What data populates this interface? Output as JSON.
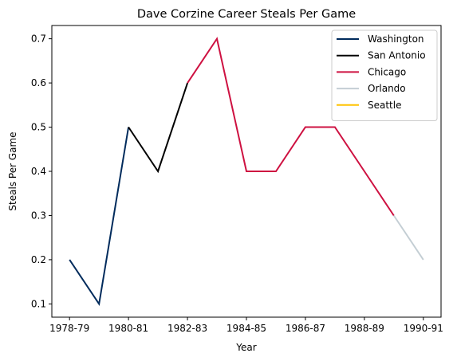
{
  "chart_data": {
    "type": "line",
    "title": "Dave Corzine Career Steals Per Game",
    "xlabel": "Year",
    "ylabel": "Steals Per Game",
    "categories": [
      "1978-79",
      "1979-80",
      "1980-81",
      "1981-82",
      "1982-83",
      "1983-84",
      "1984-85",
      "1985-86",
      "1986-87",
      "1987-88",
      "1988-89",
      "1989-90",
      "1990-91"
    ],
    "x_tick_labels": [
      "1978-79",
      "1980-81",
      "1982-83",
      "1984-85",
      "1986-87",
      "1988-89",
      "1990-91"
    ],
    "y_ticks": [
      "0.1",
      "0.2",
      "0.3",
      "0.4",
      "0.5",
      "0.6",
      "0.7"
    ],
    "ylim": [
      0.07,
      0.73
    ],
    "grid": false,
    "legend_position": "top-right",
    "series": [
      {
        "name": "Washington",
        "color": "#002b5c",
        "points": [
          [
            "1978-79",
            0.2
          ],
          [
            "1979-80",
            0.1
          ],
          [
            "1980-81",
            0.5
          ]
        ]
      },
      {
        "name": "San Antonio",
        "color": "#000000",
        "points": [
          [
            "1980-81",
            0.5
          ],
          [
            "1981-82",
            0.4
          ],
          [
            "1982-83",
            0.6
          ]
        ]
      },
      {
        "name": "Chicago",
        "color": "#ce1141",
        "points": [
          [
            "1982-83",
            0.6
          ],
          [
            "1983-84",
            0.7
          ],
          [
            "1984-85",
            0.4
          ],
          [
            "1985-86",
            0.4
          ],
          [
            "1986-87",
            0.5
          ],
          [
            "1987-88",
            0.5
          ],
          [
            "1988-89",
            0.4
          ],
          [
            "1989-90",
            0.3
          ]
        ]
      },
      {
        "name": "Orlando",
        "color": "#c4ced4",
        "points": [
          [
            "1989-90",
            0.3
          ],
          [
            "1990-91",
            0.2
          ]
        ]
      },
      {
        "name": "Seattle",
        "color": "#ffc200",
        "points": []
      }
    ]
  }
}
